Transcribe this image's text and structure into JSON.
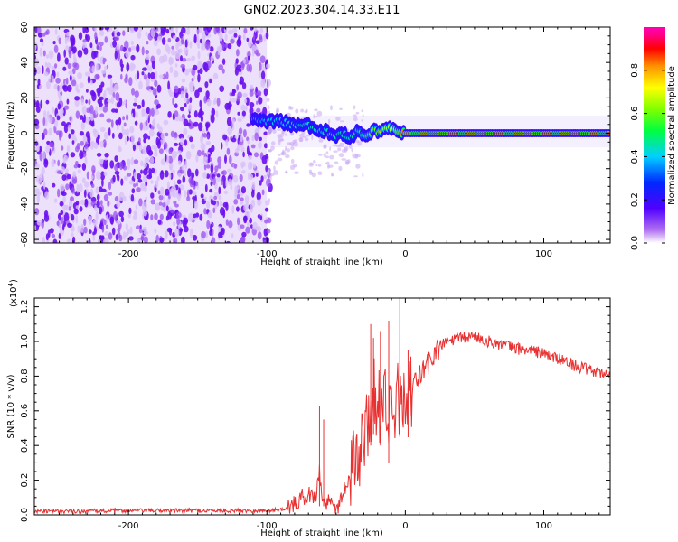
{
  "title": "GN02.2023.304.14.33.E11",
  "colors": {
    "snr_line": "#e83030",
    "axis": "#000000",
    "background": "#ffffff"
  },
  "chart_data": [
    {
      "type": "heatmap",
      "xlabel": "Height of straight line (km)",
      "ylabel": "Frequency (Hz)",
      "xlim": [
        -268,
        148
      ],
      "ylim": [
        -62,
        60
      ],
      "x_ticks": [
        -200,
        -100,
        0,
        100
      ],
      "x_tick_labels": [
        "-200",
        "-100",
        "0",
        "100"
      ],
      "y_ticks": [
        -60,
        -40,
        -20,
        0,
        20,
        40,
        60
      ],
      "y_tick_labels": [
        "-60",
        "-40",
        "-20",
        "0",
        "20",
        "40",
        "60"
      ],
      "colorbar": {
        "label": "Normalized spectral amplitude",
        "range": [
          0,
          1
        ],
        "ticks": [
          0.0,
          0.2,
          0.4,
          0.6,
          0.8
        ],
        "tick_labels": [
          "0.0",
          "0.2",
          "0.4",
          "0.6",
          "0.8"
        ],
        "colormap": "violet-blue-cyan-green-yellow-orange-red-magenta"
      },
      "regions": [
        {
          "name": "noise",
          "x_range": [
            -268,
            -100
          ],
          "y_range": [
            -62,
            60
          ],
          "amplitude": 0.05
        },
        {
          "name": "faint halo",
          "x_range": [
            -100,
            148
          ],
          "y_range": [
            -8,
            10
          ],
          "amplitude": 0.03
        }
      ],
      "ridge": {
        "x": [
          -110,
          -100,
          -90,
          -80,
          -70,
          -60,
          -55,
          -50,
          -45,
          -40,
          -35,
          -30,
          -25,
          -20,
          -15,
          -10,
          -5,
          0,
          20,
          40,
          60,
          80,
          100,
          120,
          148
        ],
        "freq": [
          7,
          7,
          6.5,
          4.5,
          4,
          2,
          0.5,
          -1,
          -0.5,
          -2,
          0.5,
          -1,
          1,
          1.5,
          3,
          2,
          1,
          0,
          0,
          0,
          0,
          0,
          0,
          0,
          0
        ],
        "amplitude": [
          0.35,
          0.4,
          0.4,
          0.45,
          0.45,
          0.45,
          0.45,
          0.45,
          0.45,
          0.45,
          0.5,
          0.55,
          0.6,
          0.6,
          0.7,
          0.7,
          0.8,
          0.85,
          0.9,
          0.9,
          0.9,
          0.9,
          0.9,
          0.9,
          0.9
        ]
      }
    },
    {
      "type": "line",
      "xlabel": "Height of straight line (km)",
      "ylabel": "SNR (10 * v/v)",
      "y_multiplier": "(x10⁴)",
      "y_multiplier_base": "(x10",
      "y_multiplier_exp": "4",
      "y_multiplier_close": ")",
      "xlim": [
        -268,
        148
      ],
      "ylim": [
        0,
        1.25
      ],
      "x_ticks": [
        -200,
        -100,
        0,
        100
      ],
      "x_tick_labels": [
        "-200",
        "-100",
        "0",
        "100"
      ],
      "y_ticks": [
        0.0,
        0.2,
        0.4,
        0.6,
        0.8,
        1.0,
        1.2
      ],
      "y_tick_labels": [
        "0.0",
        "0.2",
        "0.4",
        "0.6",
        "0.8",
        "1.0",
        "1.2"
      ],
      "series": [
        {
          "x": [
            -268,
            -240,
            -200,
            -160,
            -120,
            -100,
            -90,
            -80,
            -75,
            -70,
            -65,
            -62,
            -60,
            -58,
            -55,
            -50,
            -45,
            -40,
            -35,
            -30,
            -25,
            -22,
            -20,
            -18,
            -15,
            -12,
            -10,
            -8,
            -5,
            -3,
            0,
            5,
            10,
            15,
            20,
            25,
            30,
            40,
            50,
            60,
            70,
            80,
            90,
            100,
            110,
            120,
            130,
            140,
            148
          ],
          "y": [
            0.02,
            0.02,
            0.025,
            0.025,
            0.025,
            0.025,
            0.03,
            0.06,
            0.1,
            0.12,
            0.1,
            0.25,
            0.1,
            0.05,
            0.1,
            0.03,
            0.12,
            0.25,
            0.3,
            0.45,
            0.6,
            0.7,
            0.65,
            0.6,
            0.75,
            0.5,
            0.8,
            0.45,
            0.7,
            0.6,
            0.6,
            0.72,
            0.8,
            0.85,
            0.92,
            0.97,
            1.0,
            1.02,
            1.03,
            1.0,
            0.98,
            0.96,
            0.95,
            0.93,
            0.9,
            0.87,
            0.84,
            0.82,
            0.8
          ]
        }
      ],
      "spikes": [
        {
          "x": -62,
          "y": 0.63
        },
        {
          "x": -59,
          "y": 0.55
        },
        {
          "x": -25,
          "y": 1.1
        },
        {
          "x": -23,
          "y": 1.02
        },
        {
          "x": -18,
          "y": 1.06
        },
        {
          "x": -12,
          "y": 1.12
        },
        {
          "x": -4,
          "y": 1.25
        },
        {
          "x": 2,
          "y": 0.95
        }
      ]
    }
  ]
}
